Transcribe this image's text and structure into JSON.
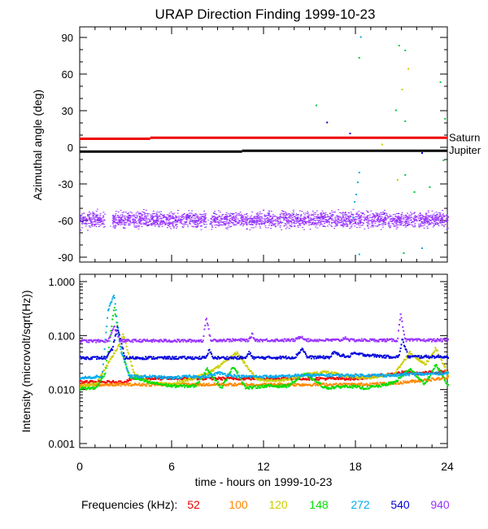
{
  "title": "URAP Direction Finding  1999-10-23",
  "chart_data": [
    {
      "type": "scatter",
      "title": "URAP Direction Finding  1999-10-23",
      "ylabel": "Azimuthal angle (deg)",
      "xlim": [
        0,
        24
      ],
      "ylim": [
        -90,
        90
      ],
      "yticks": [
        90,
        60,
        30,
        0,
        -30,
        -60,
        -90
      ],
      "grid": false,
      "reference_lines": [
        {
          "name": "Saturn",
          "color": "#ee0000",
          "segments": [
            {
              "x": [
                0,
                4.6
              ],
              "y": [
                7,
                7
              ]
            },
            {
              "x": [
                4.6,
                24
              ],
              "y": [
                7.8,
                7.8
              ]
            }
          ]
        },
        {
          "name": "Jupiter",
          "color": "#000000",
          "segments": [
            {
              "x": [
                0,
                10.6
              ],
              "y": [
                -3.5,
                -3.5
              ]
            },
            {
              "x": [
                10.6,
                24
              ],
              "y": [
                -2.8,
                -2.8
              ]
            }
          ]
        }
      ],
      "main_band": {
        "color": "#9933ff",
        "x_range": [
          0,
          24
        ],
        "y_center": -59,
        "y_spread": 6,
        "gaps": [
          [
            1.6,
            2.1
          ],
          [
            8.2,
            8.5
          ]
        ]
      },
      "scatter_points": [
        {
          "x": 15.4,
          "y": 35,
          "color": "#00cc44"
        },
        {
          "x": 16.1,
          "y": 21,
          "color": "#0000cc"
        },
        {
          "x": 17.6,
          "y": 12,
          "color": "#0000cc"
        },
        {
          "x": 18.3,
          "y": 91,
          "color": "#00aaee"
        },
        {
          "x": 18.2,
          "y": 74,
          "color": "#00cc44"
        },
        {
          "x": 18.2,
          "y": -20,
          "color": "#00aaee"
        },
        {
          "x": 18.1,
          "y": -28,
          "color": "#00aaee"
        },
        {
          "x": 18.0,
          "y": -38,
          "color": "#00aaee"
        },
        {
          "x": 17.9,
          "y": -44,
          "color": "#00aaee"
        },
        {
          "x": 17.8,
          "y": -57,
          "color": "#00aaee"
        },
        {
          "x": 18.2,
          "y": -87,
          "color": "#00aaee"
        },
        {
          "x": 20.8,
          "y": 84,
          "color": "#00cc44"
        },
        {
          "x": 21.2,
          "y": 80,
          "color": "#00cc44"
        },
        {
          "x": 21.4,
          "y": 65,
          "color": "#cccc00"
        },
        {
          "x": 21.0,
          "y": 48,
          "color": "#cccc00"
        },
        {
          "x": 20.6,
          "y": 31,
          "color": "#00cc44"
        },
        {
          "x": 21.2,
          "y": 22,
          "color": "#00cc44"
        },
        {
          "x": 19.7,
          "y": 3,
          "color": "#cccc00"
        },
        {
          "x": 20.7,
          "y": -26,
          "color": "#cccc00"
        },
        {
          "x": 21.2,
          "y": -22,
          "color": "#00cc44"
        },
        {
          "x": 21.8,
          "y": -36,
          "color": "#00cc44"
        },
        {
          "x": 22.3,
          "y": -4,
          "color": "#0000cc"
        },
        {
          "x": 22.8,
          "y": -32,
          "color": "#00cc44"
        },
        {
          "x": 23.5,
          "y": 54,
          "color": "#00cc44"
        },
        {
          "x": 23.8,
          "y": 24,
          "color": "#00cc44"
        },
        {
          "x": 23.7,
          "y": -10,
          "color": "#00cc44"
        },
        {
          "x": 22.3,
          "y": -82,
          "color": "#00aaee"
        },
        {
          "x": 21.1,
          "y": -86,
          "color": "#00cc44"
        }
      ],
      "annotations": [
        "Saturn",
        "Jupiter"
      ]
    },
    {
      "type": "line",
      "ylabel": "Intensity (microvolt/sqrt(Hz))",
      "xlabel": "time - hours on 1999-10-23",
      "xlim": [
        0,
        24
      ],
      "xticks": [
        0,
        6,
        12,
        18,
        24
      ],
      "xtick_labels": [
        "0",
        "6",
        "12",
        "18",
        "24"
      ],
      "yscale": "log",
      "ylim": [
        0.001,
        1.0
      ],
      "yticks": [
        1.0,
        0.1,
        0.01,
        0.001
      ],
      "ytick_labels": [
        "1.000",
        "0.100",
        "0.010",
        "0.001"
      ],
      "series": [
        {
          "name": "52",
          "color": "#ee0000",
          "x": [
            0,
            2.8,
            3.4,
            6,
            9,
            12,
            15,
            18,
            20,
            21,
            22,
            23,
            24
          ],
          "y": [
            0.0142,
            0.0142,
            0.0165,
            0.0166,
            0.0166,
            0.0166,
            0.0165,
            0.0165,
            0.0195,
            0.0215,
            0.0205,
            0.0215,
            0.0225
          ]
        },
        {
          "name": "100",
          "color": "#ff8800",
          "x": [
            0,
            2.8,
            6,
            12,
            18,
            20.5,
            22,
            23,
            24
          ],
          "y": [
            0.0125,
            0.0128,
            0.0128,
            0.0128,
            0.0128,
            0.0135,
            0.015,
            0.016,
            0.017
          ]
        },
        {
          "name": "120",
          "color": "#cccc00",
          "x": [
            0,
            1,
            1.6,
            2.4,
            2.8,
            3.5,
            4.5,
            6,
            7.5,
            8.5,
            9.2,
            10.2,
            11.5,
            13,
            14.8,
            16,
            17.5,
            19,
            20.5,
            21.5,
            22.5,
            23.2,
            24
          ],
          "y": [
            0.012,
            0.013,
            0.025,
            0.06,
            0.11,
            0.02,
            0.014,
            0.013,
            0.017,
            0.022,
            0.03,
            0.05,
            0.016,
            0.015,
            0.02,
            0.022,
            0.018,
            0.017,
            0.02,
            0.05,
            0.03,
            0.06,
            0.02
          ]
        },
        {
          "name": "148",
          "color": "#00dd00",
          "x": [
            0,
            1,
            1.6,
            2.2,
            2.7,
            3.2,
            4.5,
            6,
            7.5,
            8.3,
            9.2,
            10,
            10.8,
            12,
            13.5,
            14.7,
            16,
            17.5,
            18.5,
            19.5,
            20.5,
            21.5,
            22.5,
            23.2,
            24
          ],
          "y": [
            0.0108,
            0.011,
            0.02,
            0.35,
            0.05,
            0.018,
            0.014,
            0.012,
            0.012,
            0.025,
            0.011,
            0.028,
            0.011,
            0.012,
            0.012,
            0.02,
            0.011,
            0.012,
            0.011,
            0.012,
            0.014,
            0.025,
            0.013,
            0.03,
            0.012
          ]
        },
        {
          "name": "272",
          "color": "#00aaee",
          "x": [
            0,
            1.4,
            1.8,
            2.2,
            2.6,
            3.2,
            4.6,
            5.8,
            7,
            8.3,
            9,
            10.3,
            11.5,
            13,
            14.3,
            16,
            17.6,
            18.8,
            20.5,
            21.5,
            22.5,
            24
          ],
          "y": [
            0.017,
            0.018,
            0.3,
            0.6,
            0.06,
            0.018,
            0.018,
            0.017,
            0.018,
            0.018,
            0.021,
            0.018,
            0.018,
            0.018,
            0.019,
            0.019,
            0.019,
            0.019,
            0.019,
            0.02,
            0.02,
            0.021
          ]
        },
        {
          "name": "540",
          "color": "#0000dd",
          "x": [
            0,
            1.7,
            2.1,
            2.4,
            2.9,
            6,
            8.2,
            8.4,
            8.7,
            10,
            10.8,
            11,
            11.3,
            14,
            14.5,
            14.8,
            16.3,
            16.5,
            17.5,
            17.7,
            20,
            20.8,
            21,
            21.4,
            24
          ],
          "y": [
            0.04,
            0.04,
            0.06,
            0.15,
            0.04,
            0.04,
            0.04,
            0.055,
            0.04,
            0.04,
            0.04,
            0.05,
            0.04,
            0.041,
            0.06,
            0.041,
            0.041,
            0.05,
            0.041,
            0.048,
            0.042,
            0.042,
            0.09,
            0.042,
            0.042
          ]
        },
        {
          "name": "940",
          "color": "#9933ff",
          "x": [
            0,
            1.8,
            2.2,
            2.6,
            6,
            8.0,
            8.2,
            8.5,
            11,
            11.2,
            11.4,
            14,
            14.4,
            14.8,
            17,
            17.3,
            17.6,
            20.7,
            20.9,
            21.2,
            24
          ],
          "y": [
            0.082,
            0.082,
            0.15,
            0.083,
            0.083,
            0.083,
            0.23,
            0.085,
            0.085,
            0.11,
            0.085,
            0.085,
            0.1,
            0.085,
            0.085,
            0.095,
            0.085,
            0.085,
            0.27,
            0.085,
            0.085
          ]
        }
      ],
      "legend_position": "bottom",
      "legend_label": "Frequencies (kHz):"
    }
  ]
}
